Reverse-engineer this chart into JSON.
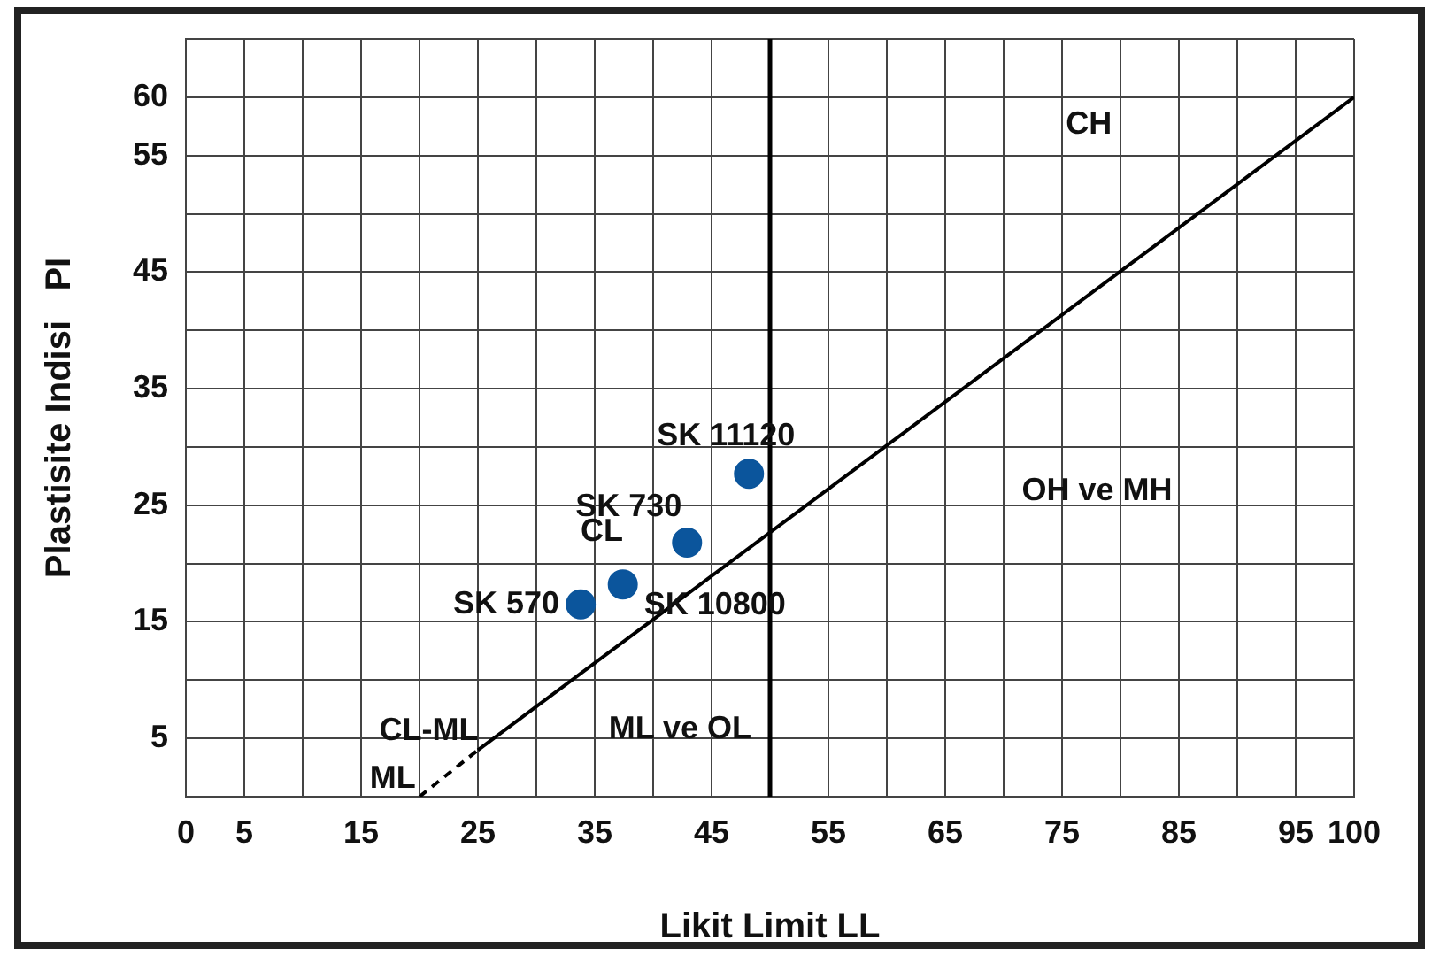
{
  "chart_data": {
    "type": "scatter",
    "xlabel": "Likit Limit LL",
    "ylabel": "Plastisite Indisi   PI",
    "xlim": [
      0,
      100
    ],
    "ylim": [
      0,
      65
    ],
    "xticks": [
      0,
      5,
      {
        "value": 10,
        "label": null
      },
      15,
      {
        "value": 20,
        "label": null
      },
      25,
      {
        "value": 30,
        "label": null
      },
      35,
      {
        "value": 40,
        "label": null
      },
      45,
      {
        "value": 50,
        "label": null
      },
      55,
      {
        "value": 60,
        "label": null
      },
      65,
      {
        "value": 70,
        "label": null
      },
      75,
      {
        "value": 80,
        "label": null
      },
      85,
      {
        "value": 90,
        "label": null
      },
      95,
      100
    ],
    "yticks": [
      {
        "value": 0,
        "label": null
      },
      5,
      {
        "value": 10,
        "label": null
      },
      15,
      {
        "value": 20,
        "label": null
      },
      25,
      {
        "value": 30,
        "label": null
      },
      35,
      {
        "value": 40,
        "label": null
      },
      45,
      {
        "value": 50,
        "label": null
      },
      55,
      60,
      {
        "value": 65,
        "label": null
      }
    ],
    "grid": true,
    "legend": false,
    "series": [
      {
        "marker": "circle",
        "color": "#0b559c",
        "x": [
          33.8,
          37.4,
          42.9,
          48.2
        ],
        "values": [
          16.5,
          18.2,
          21.8,
          27.7
        ],
        "value_labels": [
          "SK 570",
          "SK 10800",
          "SK 730",
          "SK 11120"
        ]
      },
      {
        "type": "line",
        "color": "#000000",
        "x": [
          25,
          100
        ],
        "values": [
          4,
          60
        ],
        "line_style": "solid"
      },
      {
        "type": "line",
        "color": "#000000",
        "x": [
          20,
          25
        ],
        "values": [
          0,
          4
        ],
        "line_style": "dashed"
      }
    ],
    "ref_lines": [
      {
        "axis": "x",
        "value": 50,
        "color": "#000000"
      }
    ],
    "annotations": [
      "CH",
      "OH ve MH",
      "ML ve OL",
      "CL",
      "CL-ML",
      "ML"
    ]
  }
}
